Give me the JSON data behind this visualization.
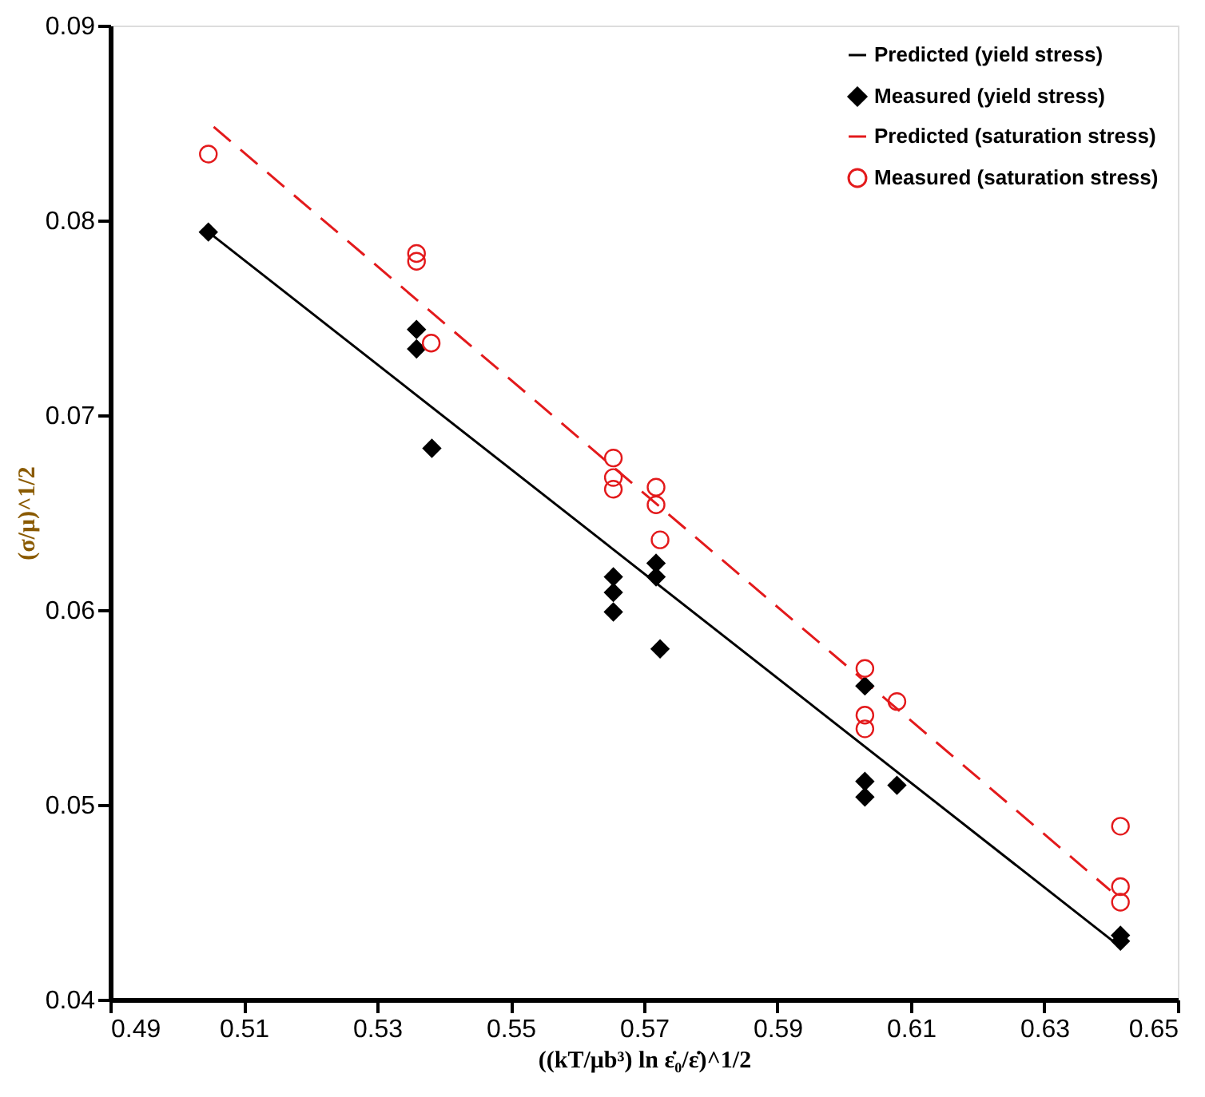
{
  "chart_data": {
    "type": "scatter",
    "xlabel": "((kT/μb³) ln ε̇₀/ε̇)^1/2",
    "ylabel": "(σ/μ)^1/2",
    "xlim": [
      0.49,
      0.65
    ],
    "xticks": [
      0.49,
      0.51,
      0.53,
      0.55,
      0.57,
      0.59,
      0.61,
      0.63,
      0.65
    ],
    "ylim": [
      0.04,
      0.09
    ],
    "yticks": [
      {
        "value": 0.04,
        "label": "0.04"
      },
      {
        "value": 0.05,
        "label": "0.05"
      },
      {
        "value": 0.06,
        "label": "0.06"
      },
      {
        "value": 0.07,
        "label": "0.07"
      },
      {
        "value": 0.08,
        "label": "0.08"
      },
      {
        "value": 0.09,
        "label": "0.09"
      }
    ],
    "grid": false,
    "legend": "top right",
    "series": [
      {
        "name": "Predicted (yield stress)",
        "type": "line",
        "line_style": "solid",
        "marker": "none",
        "color": "#000000",
        "x": [
          0.5047,
          0.6414
        ],
        "values": [
          0.0794,
          0.0427
        ]
      },
      {
        "name": "Measured (yield stress)",
        "marker": "diamond",
        "color": "#000000",
        "x": [
          0.5047,
          0.5359,
          0.5359,
          0.5382,
          0.5654,
          0.5654,
          0.5654,
          0.5718,
          0.5718,
          0.5724,
          0.6031,
          0.6031,
          0.6031,
          0.6079,
          0.6414,
          0.6414
        ],
        "values": [
          0.0794,
          0.0744,
          0.0734,
          0.0683,
          0.0617,
          0.0609,
          0.0599,
          0.0624,
          0.0617,
          0.058,
          0.0561,
          0.0512,
          0.0504,
          0.051,
          0.0433,
          0.043
        ]
      },
      {
        "name": "Predicted (saturation stress)",
        "type": "line",
        "line_style": "dashed",
        "marker": "none",
        "color": "#e31a1c",
        "x": [
          0.5055,
          0.6399
        ],
        "values": [
          0.0848,
          0.0456
        ]
      },
      {
        "name": "Measured (saturation stress)",
        "marker": "circle",
        "color": "#e31a1c",
        "x": [
          0.5047,
          0.5359,
          0.5359,
          0.5381,
          0.5654,
          0.5654,
          0.5654,
          0.5718,
          0.5718,
          0.5724,
          0.6031,
          0.6031,
          0.6031,
          0.6079,
          0.6414,
          0.6414,
          0.6414
        ],
        "values": [
          0.0834,
          0.0783,
          0.0779,
          0.0737,
          0.0678,
          0.0668,
          0.0662,
          0.0663,
          0.0654,
          0.0636,
          0.057,
          0.0546,
          0.0539,
          0.0553,
          0.0489,
          0.0458,
          0.045
        ]
      }
    ]
  }
}
